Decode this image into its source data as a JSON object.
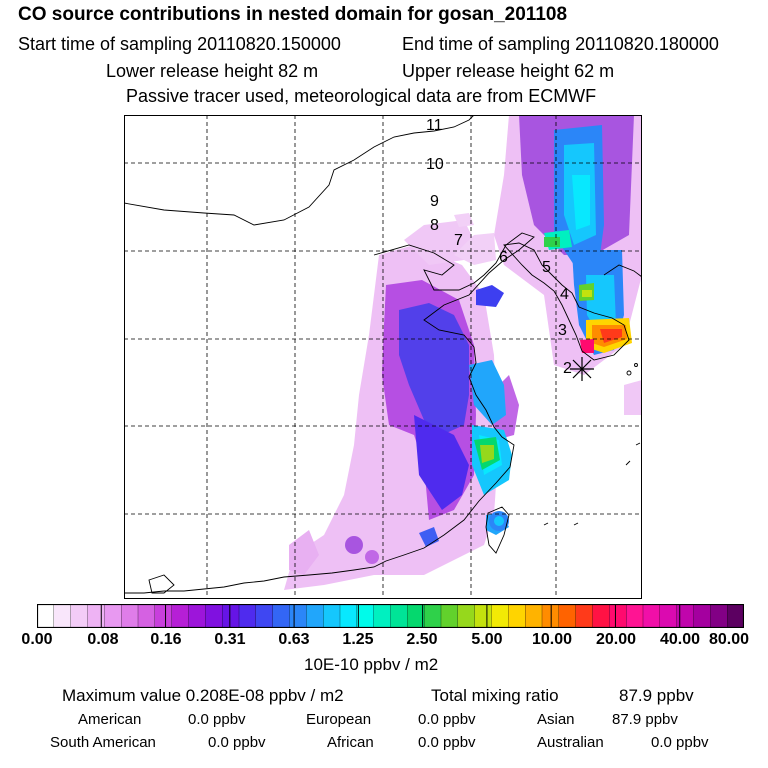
{
  "header": {
    "title": "CO  source contributions in nested domain for gosan_201108",
    "start_label": "Start time of sampling 20110820.150000",
    "end_label": "End time of sampling 20110820.180000",
    "lower_label": "Lower release height   82 m",
    "upper_label": "Upper release height   62 m",
    "tracer_label": "Passive tracer used, meteorological data are from ECMWF"
  },
  "map": {
    "trajectory_labels": [
      "11",
      "10",
      "9",
      "8",
      "7",
      "6",
      "5",
      "4",
      "3",
      "2"
    ],
    "receptor": "gosan"
  },
  "colorbar": {
    "ticks": [
      "0.00",
      "0.08",
      "0.16",
      "0.31",
      "0.63",
      "1.25",
      "2.50",
      "5.00",
      "10.00",
      "20.00",
      "40.00",
      "80.00"
    ],
    "unit": "10E-10 ppbv / m2",
    "colors": [
      "#ffffff",
      "#f9e6fb",
      "#f3ccf7",
      "#eeb3f4",
      "#e899f1",
      "#df7de9",
      "#d561e2",
      "#c83fdc",
      "#b61fd6",
      "#9d15da",
      "#8011e0",
      "#6614e6",
      "#4f2bee",
      "#3f47f2",
      "#3366f5",
      "#2b86f8",
      "#21a6fb",
      "#15c7fd",
      "#08e8fe",
      "#00fbea",
      "#00f0c0",
      "#00e497",
      "#05d86e",
      "#2fd14a",
      "#62d12c",
      "#96d81c",
      "#c4e20e",
      "#f2ea05",
      "#ffd400",
      "#ffb300",
      "#ff8c00",
      "#ff6300",
      "#ff3a1a",
      "#ff1244",
      "#ff0a6e",
      "#ff1493",
      "#f10fa8",
      "#db0ab0",
      "#c005ac",
      "#a4009f",
      "#820085",
      "#5c0061"
    ]
  },
  "footer": {
    "max_label": "Maximum value  0.208E-08 ppbv / m2",
    "total_label": "Total mixing ratio",
    "total_value": "87.9 ppbv",
    "regions": [
      {
        "name": "American",
        "value": "0.0 ppbv"
      },
      {
        "name": "European",
        "value": "0.0 ppbv"
      },
      {
        "name": "Asian",
        "value": "87.9 ppbv"
      },
      {
        "name": "South American",
        "value": "0.0 ppbv"
      },
      {
        "name": "African",
        "value": "0.0 ppbv"
      },
      {
        "name": "Australian",
        "value": "0.0 ppbv"
      }
    ]
  }
}
